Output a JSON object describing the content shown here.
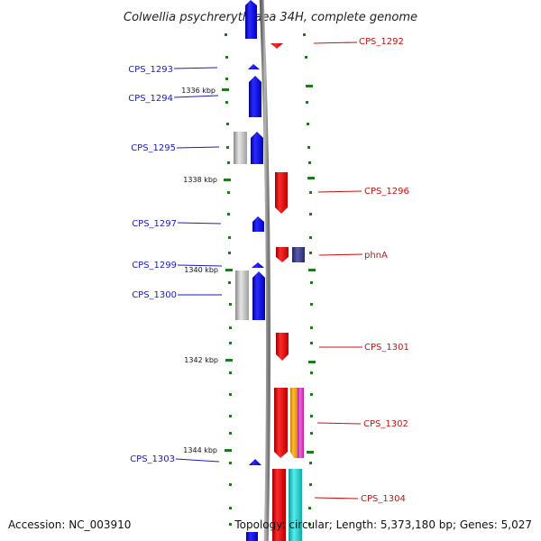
{
  "title": "Colwellia psychrerythraea 34H, complete genome",
  "footer": {
    "accession": "Accession: NC_003910",
    "topology": "Topology: circular; Length: 5,373,180 bp; Genes: 5,027"
  },
  "kbp_ticks": [
    "1336 kbp",
    "1338 kbp",
    "1340 kbp",
    "1342 kbp",
    "1344 kbp"
  ],
  "colors": {
    "forward": "#0000ee",
    "reverse": "#ee0000",
    "pseudo": "#b0b0b0",
    "phnA_partner": "#3a3a88",
    "orange": "#ff9900",
    "magenta": "#dd33cc",
    "cyan": "#22cccc",
    "tick_green": "#1f7a1f",
    "backbone": "#888888"
  },
  "left_labels": [
    {
      "name": "CPS_1293"
    },
    {
      "name": "CPS_1294"
    },
    {
      "name": "CPS_1295"
    },
    {
      "name": "CPS_1297"
    },
    {
      "name": "CPS_1299"
    },
    {
      "name": "CPS_1300"
    },
    {
      "name": "CPS_1303"
    }
  ],
  "right_labels": [
    {
      "name": "CPS_1292"
    },
    {
      "name": "CPS_1296"
    },
    {
      "name": "phnA"
    },
    {
      "name": "CPS_1301"
    },
    {
      "name": "CPS_1302"
    },
    {
      "name": "CPS_1304"
    }
  ]
}
